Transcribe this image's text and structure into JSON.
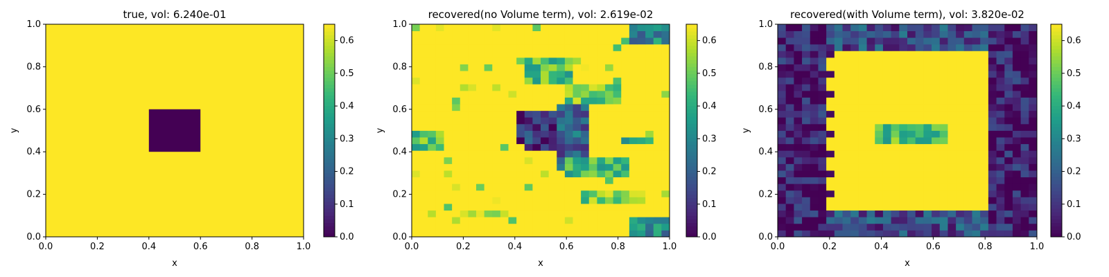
{
  "chart_data": [
    {
      "type": "heatmap",
      "title": "true, vol: 6.240e-01",
      "xlabel": "x",
      "ylabel": "y",
      "xlim": [
        0,
        1
      ],
      "ylim": [
        0,
        1
      ],
      "x_ticks": [
        "0.0",
        "0.2",
        "0.4",
        "0.6",
        "0.8",
        "1.0"
      ],
      "y_ticks": [
        "0.0",
        "0.2",
        "0.4",
        "0.6",
        "0.8",
        "1.0"
      ],
      "grid": false,
      "colormap": "viridis",
      "clim": [
        0,
        0.65
      ],
      "colorbar_ticks": [
        "0.0",
        "0.1",
        "0.2",
        "0.3",
        "0.4",
        "0.5",
        "0.6"
      ],
      "fill_value": 0.65,
      "regions": [
        {
          "x": [
            0.4,
            0.6
          ],
          "y": [
            0.4,
            0.6
          ],
          "value": 0.0
        }
      ]
    },
    {
      "type": "heatmap",
      "title": "recovered(no Volume term), vol: 2.619e-02",
      "xlabel": "x",
      "ylabel": "y",
      "xlim": [
        0,
        1
      ],
      "ylim": [
        0,
        1
      ],
      "x_ticks": [
        "0.0",
        "0.2",
        "0.4",
        "0.6",
        "0.8",
        "1.0"
      ],
      "y_ticks": [
        "0.0",
        "0.2",
        "0.4",
        "0.6",
        "0.8",
        "1.0"
      ],
      "grid": false,
      "colormap": "viridis",
      "clim": [
        0,
        0.65
      ],
      "colorbar_ticks": [
        "0.0",
        "0.1",
        "0.2",
        "0.3",
        "0.4",
        "0.5",
        "0.6"
      ],
      "grid_size": 32,
      "fill_value": 0.65,
      "regions": [
        {
          "x": [
            0.42,
            0.62
          ],
          "y": [
            0.44,
            0.58
          ],
          "value": 0.1
        },
        {
          "x": [
            0.45,
            0.58
          ],
          "y": [
            0.4,
            0.45
          ],
          "value": 0.08
        },
        {
          "x": [
            0.56,
            0.68
          ],
          "y": [
            0.3,
            0.62
          ],
          "value": 0.2
        },
        {
          "x": [
            0.44,
            0.62
          ],
          "y": [
            0.72,
            0.84
          ],
          "value": 0.45
        },
        {
          "x": [
            0.6,
            0.8
          ],
          "y": [
            0.62,
            0.72
          ],
          "value": 0.5
        },
        {
          "x": [
            0.6,
            0.85
          ],
          "y": [
            0.28,
            0.36
          ],
          "value": 0.45
        },
        {
          "x": [
            0.85,
            1.0
          ],
          "y": [
            0.9,
            1.0
          ],
          "value": 0.3
        },
        {
          "x": [
            0.85,
            1.0
          ],
          "y": [
            0.0,
            0.1
          ],
          "value": 0.3
        },
        {
          "x": [
            0.0,
            0.12
          ],
          "y": [
            0.42,
            0.5
          ],
          "value": 0.45
        },
        {
          "x": [
            0.2,
            0.38
          ],
          "y": [
            0.08,
            0.12
          ],
          "value": 0.55
        },
        {
          "x": [
            0.65,
            0.9
          ],
          "y": [
            0.15,
            0.22
          ],
          "value": 0.5
        },
        {
          "x": [
            0.8,
            0.95
          ],
          "y": [
            0.44,
            0.46
          ],
          "value": 0.4
        }
      ]
    },
    {
      "type": "heatmap",
      "title": "recovered(with Volume term), vol: 3.820e-02",
      "xlabel": "x",
      "ylabel": "y",
      "xlim": [
        0,
        1
      ],
      "ylim": [
        0,
        1
      ],
      "x_ticks": [
        "0.0",
        "0.2",
        "0.4",
        "0.6",
        "0.8",
        "1.0"
      ],
      "y_ticks": [
        "0.0",
        "0.2",
        "0.4",
        "0.6",
        "0.8",
        "1.0"
      ],
      "grid": false,
      "colormap": "viridis",
      "clim": [
        0,
        0.65
      ],
      "colorbar_ticks": [
        "0.0",
        "0.1",
        "0.2",
        "0.3",
        "0.4",
        "0.5",
        "0.6"
      ],
      "grid_size": 32,
      "fill_value": 0.65,
      "regions": [
        {
          "x": [
            0.38,
            0.65
          ],
          "y": [
            0.44,
            0.54
          ],
          "value": 0.45
        },
        {
          "x": [
            0.0,
            0.18
          ],
          "y": [
            0.0,
            1.0
          ],
          "value": 0.05
        },
        {
          "x": [
            0.82,
            1.0
          ],
          "y": [
            0.0,
            1.0
          ],
          "value": 0.05
        },
        {
          "x": [
            0.18,
            0.82
          ],
          "y": [
            0.0,
            0.12
          ],
          "value": 0.15
        },
        {
          "x": [
            0.18,
            0.82
          ],
          "y": [
            0.88,
            1.0
          ],
          "value": 0.15
        }
      ]
    }
  ]
}
